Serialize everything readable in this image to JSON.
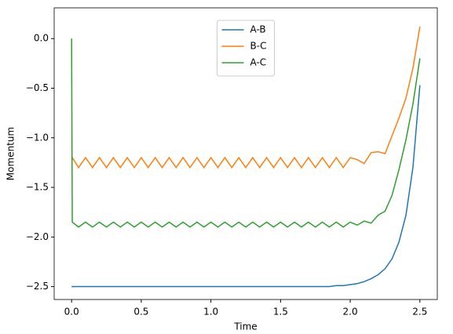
{
  "chart_data": {
    "type": "line",
    "xlabel": "Time",
    "ylabel": "Momentum",
    "x": [
      0,
      0.005,
      0.05,
      0.1,
      0.15,
      0.2,
      0.25,
      0.3,
      0.35,
      0.4,
      0.45,
      0.5,
      0.55,
      0.6,
      0.65,
      0.7,
      0.75,
      0.8,
      0.85,
      0.9,
      0.95,
      1.0,
      1.05,
      1.1,
      1.15,
      1.2,
      1.25,
      1.3,
      1.35,
      1.4,
      1.45,
      1.5,
      1.55,
      1.6,
      1.65,
      1.7,
      1.75,
      1.8,
      1.85,
      1.9,
      1.95,
      2.0,
      2.05,
      2.1,
      2.15,
      2.2,
      2.25,
      2.3,
      2.35,
      2.4,
      2.45,
      2.5
    ],
    "series": [
      {
        "name": "A-B",
        "color": "#1f77b4",
        "values": [
          -2.5,
          -2.5,
          -2.5,
          -2.5,
          -2.5,
          -2.5,
          -2.5,
          -2.5,
          -2.5,
          -2.5,
          -2.5,
          -2.5,
          -2.5,
          -2.5,
          -2.5,
          -2.5,
          -2.5,
          -2.5,
          -2.5,
          -2.5,
          -2.5,
          -2.5,
          -2.5,
          -2.5,
          -2.5,
          -2.5,
          -2.5,
          -2.5,
          -2.5,
          -2.5,
          -2.5,
          -2.5,
          -2.5,
          -2.5,
          -2.5,
          -2.5,
          -2.5,
          -2.5,
          -2.5,
          -2.49,
          -2.49,
          -2.48,
          -2.47,
          -2.45,
          -2.42,
          -2.38,
          -2.32,
          -2.22,
          -2.05,
          -1.78,
          -1.3,
          -0.47
        ]
      },
      {
        "name": "B-C",
        "color": "#ff7f0e",
        "values": [
          -1.2,
          -1.2,
          -1.3,
          -1.2,
          -1.3,
          -1.2,
          -1.3,
          -1.2,
          -1.3,
          -1.2,
          -1.3,
          -1.2,
          -1.3,
          -1.2,
          -1.3,
          -1.2,
          -1.3,
          -1.2,
          -1.3,
          -1.2,
          -1.3,
          -1.2,
          -1.3,
          -1.2,
          -1.3,
          -1.2,
          -1.3,
          -1.2,
          -1.3,
          -1.2,
          -1.3,
          -1.2,
          -1.3,
          -1.2,
          -1.3,
          -1.2,
          -1.3,
          -1.2,
          -1.3,
          -1.2,
          -1.3,
          -1.2,
          -1.22,
          -1.26,
          -1.15,
          -1.14,
          -1.16,
          -0.98,
          -0.8,
          -0.6,
          -0.3,
          0.12
        ]
      },
      {
        "name": "A-C",
        "color": "#2ca02c",
        "values": [
          0.0,
          -1.85,
          -1.9,
          -1.85,
          -1.9,
          -1.85,
          -1.9,
          -1.85,
          -1.9,
          -1.85,
          -1.9,
          -1.85,
          -1.9,
          -1.85,
          -1.9,
          -1.85,
          -1.9,
          -1.85,
          -1.9,
          -1.85,
          -1.9,
          -1.85,
          -1.9,
          -1.85,
          -1.9,
          -1.85,
          -1.9,
          -1.85,
          -1.9,
          -1.85,
          -1.9,
          -1.85,
          -1.9,
          -1.85,
          -1.9,
          -1.85,
          -1.9,
          -1.85,
          -1.9,
          -1.85,
          -1.9,
          -1.85,
          -1.88,
          -1.84,
          -1.86,
          -1.78,
          -1.74,
          -1.58,
          -1.32,
          -1.02,
          -0.66,
          -0.2
        ]
      }
    ],
    "xlim": [
      -0.125,
      2.625
    ],
    "xticks": [
      {
        "value": 0,
        "label": "0.0"
      },
      {
        "value": 0.5,
        "label": "0.5"
      },
      {
        "value": 1,
        "label": "1.0"
      },
      {
        "value": 1.5,
        "label": "1.5"
      },
      {
        "value": 2,
        "label": "2.0"
      },
      {
        "value": 2.5,
        "label": "2.5"
      }
    ],
    "ylim": [
      -2.63,
      0.31
    ],
    "yticks": [
      {
        "value": 0,
        "label": "0.0"
      },
      {
        "value": -0.5,
        "label": "−0.5"
      },
      {
        "value": -1,
        "label": "−1.0"
      },
      {
        "value": -1.5,
        "label": "−1.5"
      },
      {
        "value": -2,
        "label": "−2.0"
      },
      {
        "value": -2.5,
        "label": "−2.5"
      }
    ],
    "legend": "upper center"
  }
}
